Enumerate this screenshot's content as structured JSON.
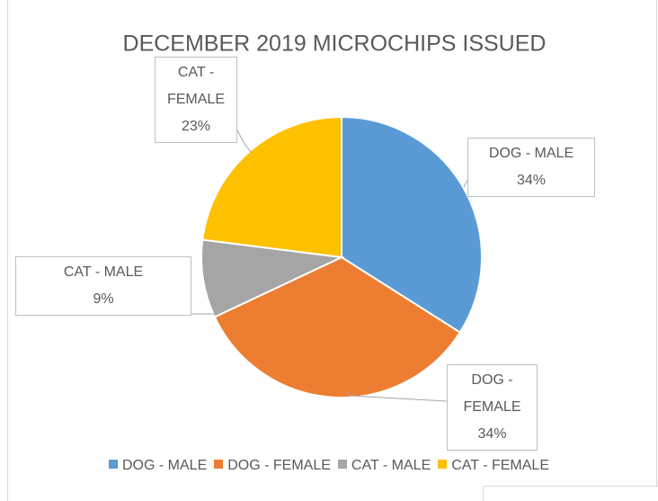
{
  "chart_data": {
    "type": "pie",
    "title": "DECEMBER 2019 MICROCHIPS ISSUED",
    "categories": [
      "DOG - MALE",
      "DOG - FEMALE",
      "CAT - MALE",
      "CAT - FEMALE"
    ],
    "values": [
      34,
      34,
      9,
      23
    ],
    "value_labels": [
      "34%",
      "34%",
      "9%",
      "23%"
    ],
    "colors": [
      "#5b9bd5",
      "#ed7d31",
      "#a5a5a5",
      "#ffc000"
    ],
    "legend": "bottom"
  }
}
